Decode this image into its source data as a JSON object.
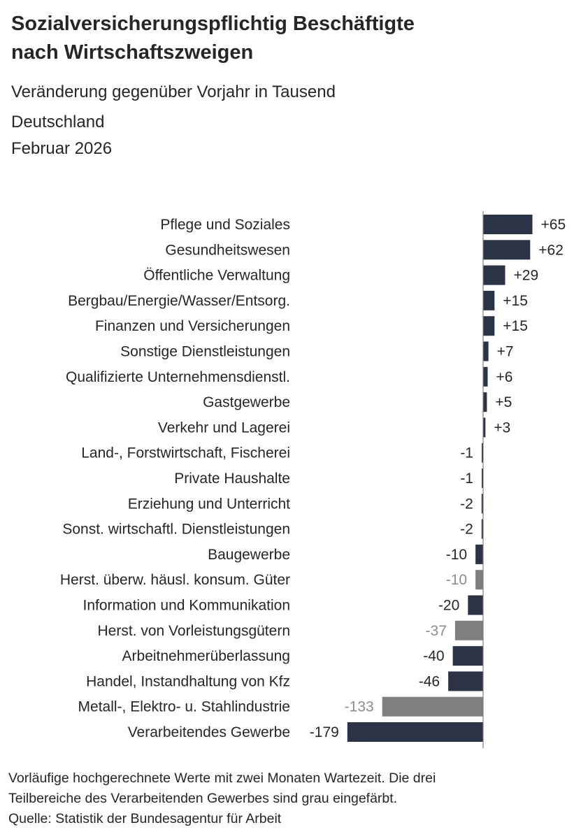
{
  "header": {
    "title_line1": "Sozialversicherungspflichtig Beschäftigte",
    "title_line2": "nach Wirtschaftszweigen",
    "subtitle": "Veränderung gegenüber Vorjahr in Tausend",
    "region": "Deutschland",
    "period": "Februar 2026"
  },
  "colors": {
    "dark_bar": "#2b3446",
    "grey_bar": "#7f7f7f",
    "dark_text": "#262626",
    "grey_text": "#8c8c8c"
  },
  "chart_data": {
    "type": "bar",
    "orientation": "horizontal",
    "categories": [
      "Pflege und Soziales",
      "Gesundheitswesen",
      "Öffentliche Verwaltung",
      "Bergbau/Energie/Wasser/Entsorg.",
      "Finanzen und Versicherungen",
      "Sonstige Dienstleistungen",
      "Qualifizierte Unternehmensdienstl.",
      "Gastgewerbe",
      "Verkehr und Lagerei",
      "Land-, Forstwirtschaft, Fischerei",
      "Private Haushalte",
      "Erziehung und Unterricht",
      "Sonst. wirtschaftl. Dienstleistungen",
      "Baugewerbe",
      "Herst. überw. häusl. konsum. Güter",
      "Information und Kommunikation",
      "Herst. von Vorleistungsgütern",
      "Arbeitnehmerüberlassung",
      "Handel, Instandhaltung von Kfz",
      "Metall-, Elektro- u. Stahlindustrie",
      "Verarbeitendes Gewerbe"
    ],
    "values": [
      65,
      62,
      29,
      15,
      15,
      7,
      6,
      5,
      3,
      -1,
      -1,
      -2,
      -2,
      -10,
      -10,
      -20,
      -37,
      -40,
      -46,
      -133,
      -179
    ],
    "value_labels": [
      "+65",
      "+62",
      "+29",
      "+15",
      "+15",
      "+7",
      "+6",
      "+5",
      "+3",
      "-1",
      "-1",
      "-2",
      "-2",
      "-10",
      "-10",
      "-20",
      "-37",
      "-40",
      "-46",
      "-133",
      "-179"
    ],
    "grey_subsector": [
      false,
      false,
      false,
      false,
      false,
      false,
      false,
      false,
      false,
      false,
      false,
      false,
      false,
      false,
      true,
      false,
      true,
      false,
      false,
      true,
      false
    ],
    "xlim": [
      -179,
      65
    ]
  },
  "footnote": {
    "line1": "Vorläufige hochgerechnete Werte mit zwei Monaten Wartezeit. Die drei",
    "line2": "Teilbereiche des Verarbeitenden Gewerbes sind grau eingefärbt.",
    "line3": "Quelle: Statistik der Bundesagentur für Arbeit"
  }
}
